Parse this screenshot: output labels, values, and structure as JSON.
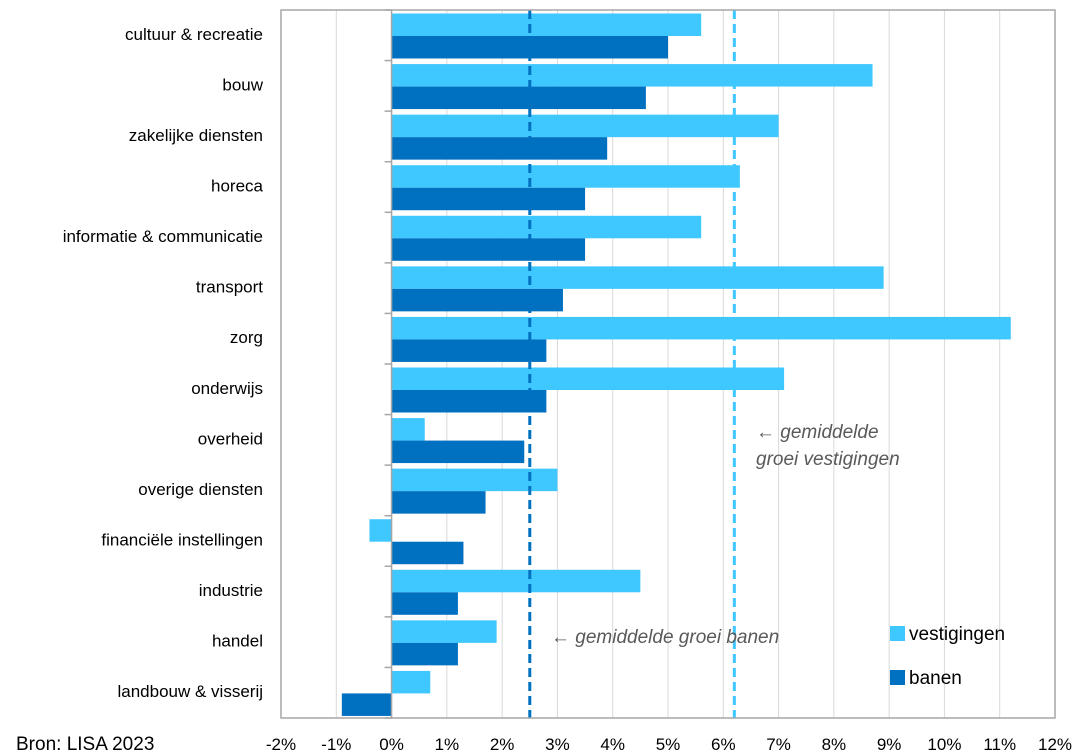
{
  "chart_data": {
    "type": "bar",
    "orientation": "horizontal",
    "categories": [
      "cultuur & recreatie",
      "bouw",
      "zakelijke diensten",
      "horeca",
      "informatie & communicatie",
      "transport",
      "zorg",
      "onderwijs",
      "overheid",
      "overige diensten",
      "financiële instellingen",
      "industrie",
      "handel",
      "landbouw & visserij"
    ],
    "series": [
      {
        "name": "vestigingen",
        "color": "#3FC8FF",
        "values": [
          5.6,
          8.7,
          7.0,
          6.3,
          5.6,
          8.9,
          11.2,
          7.1,
          0.6,
          3.0,
          -0.4,
          4.5,
          1.9,
          0.7
        ]
      },
      {
        "name": "banen",
        "color": "#0070C0",
        "values": [
          5.0,
          4.6,
          3.9,
          3.5,
          3.5,
          3.1,
          2.8,
          2.8,
          2.4,
          1.7,
          1.3,
          1.2,
          1.2,
          -0.9
        ]
      }
    ],
    "xlim": [
      -2,
      12
    ],
    "xticks": [
      -2,
      -1,
      0,
      1,
      2,
      3,
      4,
      5,
      6,
      7,
      8,
      9,
      10,
      11,
      12
    ],
    "xtick_labels": [
      "-2%",
      "-1%",
      "0%",
      "1%",
      "2%",
      "3%",
      "4%",
      "5%",
      "6%",
      "7%",
      "8%",
      "9%",
      "10%",
      "11%",
      "12%"
    ],
    "grid": "vertical",
    "reference_lines": [
      {
        "value": 6.2,
        "color": "#3FC8FF",
        "style": "dashed",
        "label_lines": [
          "← gemiddelde",
          "groei vestigingen"
        ]
      },
      {
        "value": 2.5,
        "color": "#0070C0",
        "style": "dashed",
        "label_lines": [
          "← gemiddelde groei banen"
        ]
      }
    ],
    "legend_position": "bottom-right",
    "source": "Bron: LISA 2023"
  }
}
